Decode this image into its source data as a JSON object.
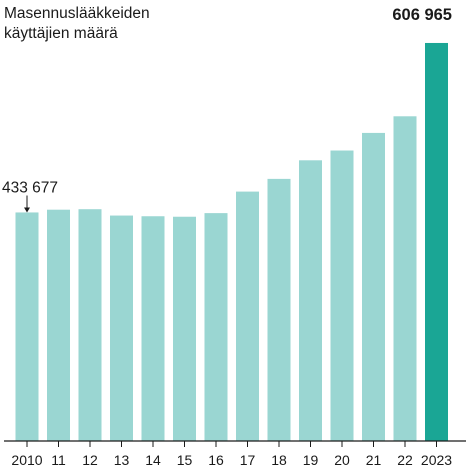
{
  "chart_data": {
    "type": "bar",
    "title": "Masennuslääkkeiden\nkäyttäjien määrä",
    "xlabel": "",
    "ylabel": "",
    "categories": [
      "2010",
      "11",
      "12",
      "13",
      "14",
      "15",
      "16",
      "17",
      "18",
      "19",
      "20",
      "21",
      "22",
      "2023"
    ],
    "values": [
      433677,
      436500,
      437000,
      430500,
      429800,
      429300,
      433000,
      455000,
      468000,
      487000,
      497000,
      515000,
      532000,
      606965
    ],
    "data_labels": [
      {
        "category": "2010",
        "text": "433 677"
      },
      {
        "category": "2023",
        "text": "606 965"
      }
    ],
    "ylim": [
      200000,
      610000
    ],
    "grid": false,
    "legend": "none",
    "colors": {
      "bar": "#9ad6d2",
      "highlight": "#1aa695",
      "text": "#1a1a1a",
      "axis": "#1a1a1a"
    }
  }
}
